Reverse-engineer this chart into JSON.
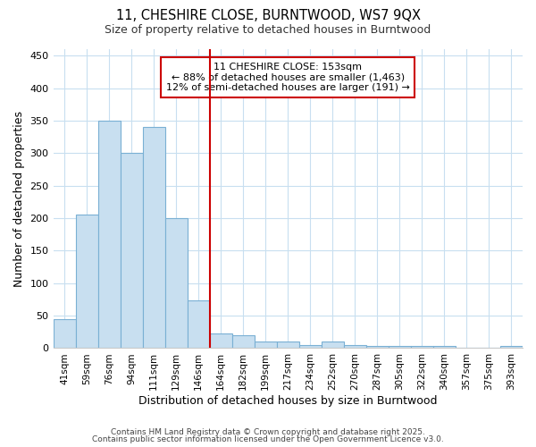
{
  "title1": "11, CHESHIRE CLOSE, BURNTWOOD, WS7 9QX",
  "title2": "Size of property relative to detached houses in Burntwood",
  "xlabel": "Distribution of detached houses by size in Burntwood",
  "ylabel": "Number of detached properties",
  "categories": [
    "41sqm",
    "59sqm",
    "76sqm",
    "94sqm",
    "111sqm",
    "129sqm",
    "146sqm",
    "164sqm",
    "182sqm",
    "199sqm",
    "217sqm",
    "234sqm",
    "252sqm",
    "270sqm",
    "287sqm",
    "305sqm",
    "322sqm",
    "340sqm",
    "357sqm",
    "375sqm",
    "393sqm"
  ],
  "values": [
    45,
    205,
    350,
    300,
    340,
    200,
    73,
    23,
    20,
    10,
    10,
    5,
    10,
    5,
    3,
    3,
    3,
    3,
    0,
    0,
    3
  ],
  "bar_color": "#c8dff0",
  "bar_edgecolor": "#7ab0d4",
  "vline_x": 6.5,
  "vline_color": "#cc0000",
  "annotation_line1": "11 CHESHIRE CLOSE: 153sqm",
  "annotation_line2": "← 88% of detached houses are smaller (1,463)",
  "annotation_line3": "12% of semi-detached houses are larger (191) →",
  "annotation_box_edgecolor": "#cc0000",
  "ylim": [
    0,
    460
  ],
  "yticks": [
    0,
    50,
    100,
    150,
    200,
    250,
    300,
    350,
    400,
    450
  ],
  "fig_bg": "#ffffff",
  "ax_bg": "#ffffff",
  "grid_color": "#c8dff0",
  "footer1": "Contains HM Land Registry data © Crown copyright and database right 2025.",
  "footer2": "Contains public sector information licensed under the Open Government Licence v3.0."
}
